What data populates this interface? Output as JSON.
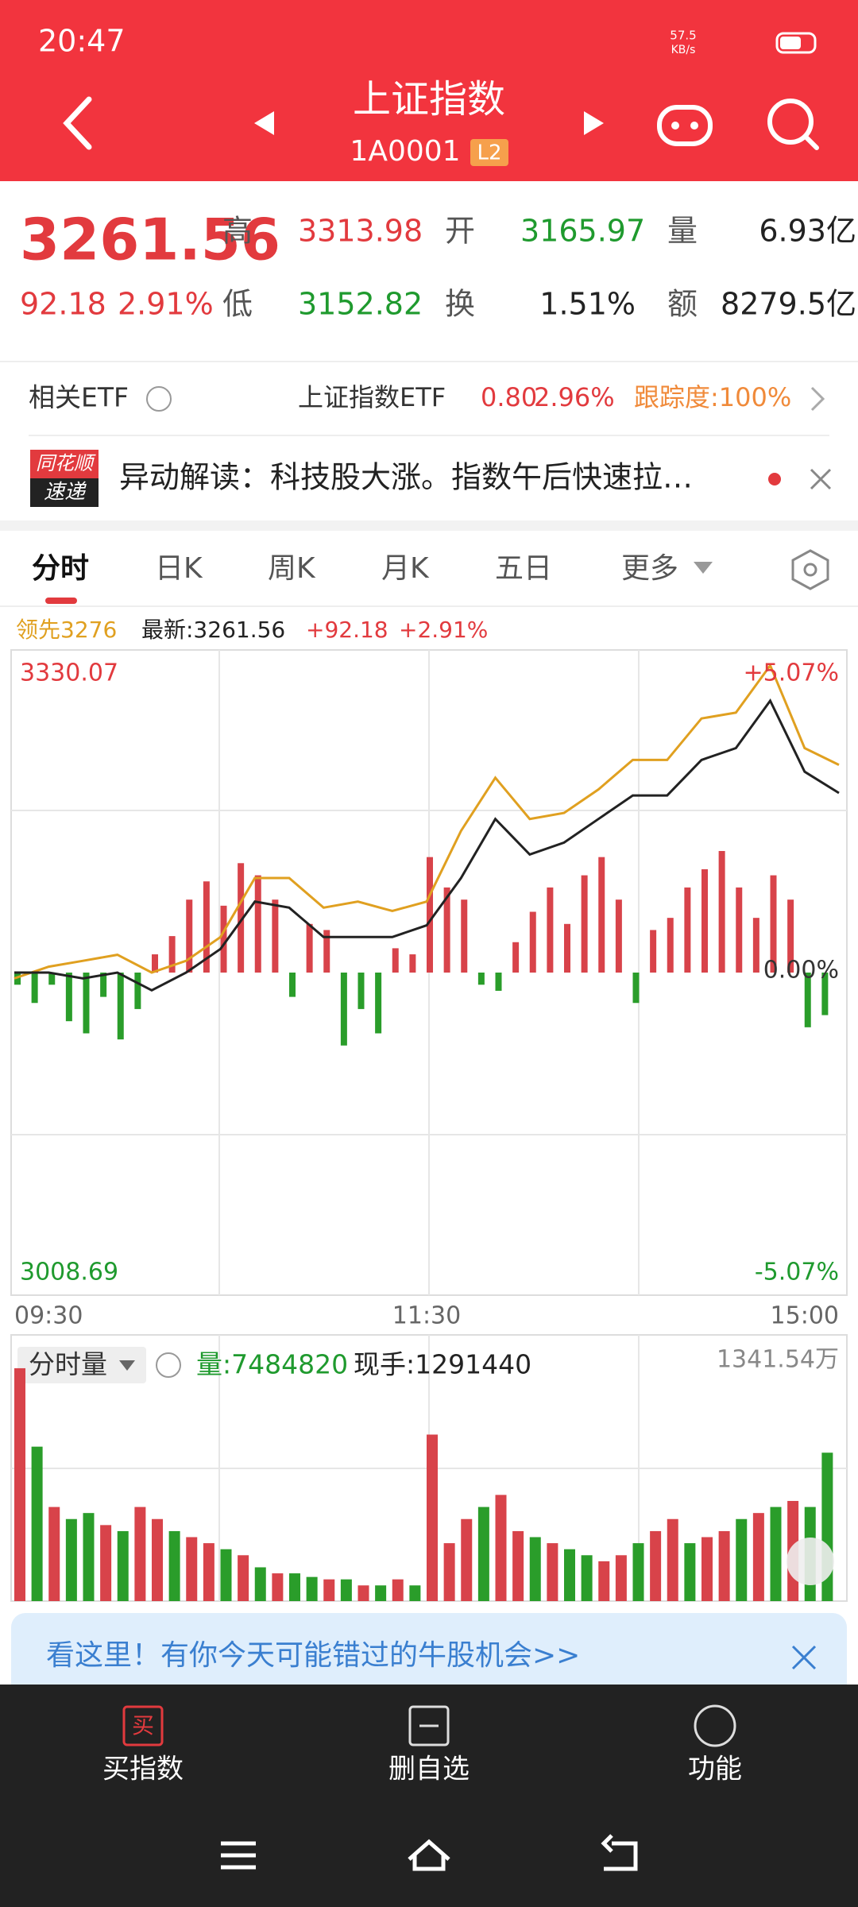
{
  "status_bar": {
    "time": "20:47",
    "speed": "57.5",
    "speed_unit": "KB/s"
  },
  "header": {
    "title": "上证指数",
    "code": "1A0001",
    "badge": "L2"
  },
  "quote": {
    "price": "3261.56",
    "change": "92.18",
    "change_pct": "2.91%",
    "fields": [
      {
        "label": "高",
        "value": "3313.98",
        "color": "#e23a3e"
      },
      {
        "label": "开",
        "value": "3165.97",
        "color": "#1f9a2e"
      },
      {
        "label": "量",
        "value": "6.93亿",
        "color": "#222222"
      },
      {
        "label": "低",
        "value": "3152.82",
        "color": "#1f9a2e"
      },
      {
        "label": "换",
        "value": "1.51%",
        "color": "#222222"
      },
      {
        "label": "额",
        "value": "8279.5亿",
        "color": "#222222"
      }
    ]
  },
  "etf": {
    "label": "相关ETF",
    "name": "上证指数ETF",
    "price": "0.80",
    "pct": "2.96%",
    "tracking": "跟踪度:100%"
  },
  "news": {
    "badge_top": "同花顺",
    "badge_bottom": "速递",
    "text": "异动解读：科技股大涨。指数午后快速拉…"
  },
  "tabs": [
    "分时",
    "日K",
    "周K",
    "月K",
    "五日",
    "更多"
  ],
  "legend": {
    "lead": "领先3276",
    "latest": "最新:3261.56",
    "change": "+92.18",
    "pct": "+2.91%"
  },
  "chart_data": [
    {
      "type": "line",
      "xlim": [
        0,
        240
      ],
      "xticks": [
        {
          "value": 0,
          "label": "09:30"
        },
        {
          "value": 120,
          "label": "11:30"
        },
        {
          "value": 240,
          "label": "15:00"
        }
      ],
      "ylim": [
        3008.69,
        3330.07
      ],
      "yticks": [
        {
          "value": 3008.69,
          "label": "3008.69"
        },
        {
          "value": 3330.07,
          "label": "3330.07"
        }
      ],
      "y2lim": [
        -5.07,
        5.07
      ],
      "y2ticks": [
        {
          "value": -5.07,
          "label": "-5.07%"
        },
        {
          "value": 0,
          "label": "0.00%"
        },
        {
          "value": 5.07,
          "label": "+5.07%"
        }
      ],
      "x": [
        0,
        10,
        20,
        30,
        40,
        50,
        60,
        70,
        80,
        90,
        100,
        110,
        120,
        130,
        140,
        150,
        160,
        170,
        180,
        190,
        200,
        210,
        220,
        230,
        240
      ],
      "series": [
        {
          "color": "#e0a020",
          "values": [
            3166.4,
            3172.4,
            3175.4,
            3178.5,
            3169.4,
            3175.4,
            3187.6,
            3217.9,
            3217.9,
            3202.7,
            3205.8,
            3201.0,
            3205.8,
            3242.1,
            3269.4,
            3248.2,
            3251.3,
            3263.4,
            3278.5,
            3278.5,
            3299.8,
            3302.8,
            3327.0,
            3284.6,
            3276
          ]
        },
        {
          "color": "#222222",
          "values": [
            3169.4,
            3169.4,
            3166.4,
            3169.4,
            3160.3,
            3169.4,
            3181.5,
            3205.8,
            3202.7,
            3187.6,
            3187.6,
            3187.6,
            3193.6,
            3217.9,
            3248.2,
            3230.0,
            3236.1,
            3248.2,
            3260.3,
            3260.3,
            3278.5,
            3284.6,
            3308.9,
            3272.5,
            3261.56
          ]
        }
      ],
      "bar_x": [
        0,
        5,
        10,
        15,
        20,
        25,
        30,
        35,
        40,
        45,
        50,
        55,
        60,
        65,
        70,
        75,
        80,
        85,
        90,
        95,
        100,
        105,
        110,
        115,
        120,
        125,
        130,
        135,
        140,
        145,
        150,
        155,
        160,
        165,
        170,
        175,
        180,
        185,
        190,
        195,
        200,
        205,
        210,
        215,
        220,
        225,
        230,
        235
      ],
      "bar_values": [
        -10,
        -25,
        -10,
        -40,
        -50,
        -20,
        -55,
        -30,
        15,
        30,
        60,
        75,
        55,
        90,
        80,
        60,
        -20,
        40,
        35,
        -60,
        -30,
        -50,
        20,
        15,
        95,
        70,
        60,
        -10,
        -15,
        25,
        50,
        70,
        40,
        80,
        95,
        60,
        -25,
        35,
        45,
        70,
        85,
        100,
        70,
        45,
        80,
        60,
        -45,
        -35
      ],
      "up_color": "#d8434a",
      "down_color": "#2a9d2a"
    },
    {
      "type": "bar",
      "selector": "分时量",
      "volume": "量:7484820",
      "current": "现手:1291440",
      "ylim": [
        0,
        1341.54
      ],
      "yticks": [
        {
          "value": 1341.54,
          "label": "1341.54万"
        }
      ],
      "xlim": [
        0,
        240
      ],
      "x": [
        0,
        5,
        10,
        15,
        20,
        25,
        30,
        35,
        40,
        45,
        50,
        55,
        60,
        65,
        70,
        75,
        80,
        85,
        90,
        95,
        100,
        105,
        110,
        115,
        120,
        125,
        130,
        135,
        140,
        145,
        150,
        155,
        160,
        165,
        170,
        175,
        180,
        185,
        190,
        195,
        200,
        205,
        210,
        215,
        220,
        225,
        230,
        235
      ],
      "values": [
        1187.7,
        787.7,
        480,
        418.5,
        449.2,
        387.7,
        356.9,
        480,
        418.5,
        356.9,
        326.2,
        295.4,
        264.6,
        233.9,
        172.3,
        141.5,
        141.5,
        123.1,
        110.8,
        110.8,
        80,
        80,
        110.8,
        80,
        849.3,
        295.4,
        418.5,
        480,
        541.6,
        356.9,
        326.2,
        295.4,
        264.6,
        233.9,
        203.1,
        233.9,
        295.4,
        356.9,
        418.5,
        295.4,
        326.2,
        356.9,
        418.5,
        449.2,
        480,
        510.8,
        480,
        757
      ],
      "colors": [
        "#d8434a",
        "#2a9d2a",
        "#d8434a",
        "#2a9d2a",
        "#2a9d2a",
        "#d8434a",
        "#2a9d2a",
        "#d8434a",
        "#d8434a",
        "#2a9d2a",
        "#d8434a",
        "#d8434a",
        "#2a9d2a",
        "#d8434a",
        "#2a9d2a",
        "#d8434a",
        "#2a9d2a",
        "#2a9d2a",
        "#d8434a",
        "#2a9d2a",
        "#d8434a",
        "#2a9d2a",
        "#d8434a",
        "#2a9d2a",
        "#d8434a",
        "#d8434a",
        "#d8434a",
        "#2a9d2a",
        "#d8434a",
        "#d8434a",
        "#2a9d2a",
        "#d8434a",
        "#2a9d2a",
        "#2a9d2a",
        "#d8434a",
        "#d8434a",
        "#2a9d2a",
        "#d8434a",
        "#d8434a",
        "#2a9d2a",
        "#d8434a",
        "#d8434a",
        "#2a9d2a",
        "#d8434a",
        "#2a9d2a",
        "#d8434a",
        "#2a9d2a",
        "#2a9d2a"
      ]
    }
  ],
  "banner": {
    "text": "看这里！有你今天可能错过的牛股机会>>"
  },
  "bottom": {
    "buy_icon": "买",
    "buttons": [
      "买指数",
      "删自选",
      "功能"
    ]
  }
}
